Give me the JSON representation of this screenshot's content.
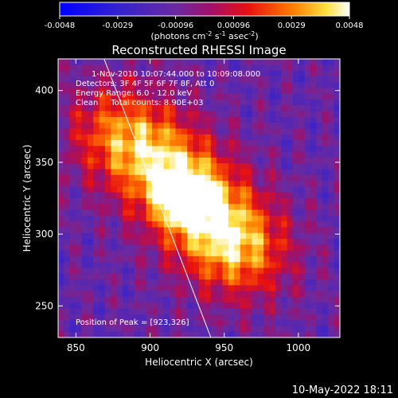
{
  "chart_data": {
    "type": "heatmap",
    "title": "Reconstructed RHESSI Image",
    "xlabel": "Heliocentric X (arcsec)",
    "ylabel": "Heliocentric Y (arcsec)",
    "xlim": [
      838,
      1028
    ],
    "ylim": [
      228,
      422
    ],
    "xticks": [
      850,
      900,
      950,
      1000
    ],
    "yticks": [
      250,
      300,
      350,
      400
    ],
    "colorbar": {
      "min": -0.0048,
      "max": 0.0048,
      "ticks": [
        "-0.0048",
        "-0.0029",
        "-0.00096",
        "0.00096",
        "0.0029",
        "0.0048"
      ],
      "units_label": "(photons cm",
      "units_sup1": "-2",
      "units_mid": " s",
      "units_sup2": "-1",
      "units_end": " asec",
      "units_sup3": "-2",
      "units_close": ")",
      "colormap": "blue-purple-red-orange-yellow-white"
    },
    "annotations": [
      "1-Nov-2010 10:07:44.000 to 10:09:08.000",
      "Detectors: 3F 4F 5F 6F 7F 8F, Att 0",
      "Energy Range: 6.0 - 12.0 keV",
      "Clean     Total counts: 8.90E+03"
    ],
    "peak_label": "Position of Peak = [923,326]",
    "peak": [
      923,
      326
    ],
    "limb_line": [
      [
        869,
        422
      ],
      [
        941,
        228
      ]
    ],
    "source_ridge": [
      [
        877,
        372
      ],
      [
        905,
        352
      ],
      [
        925,
        328
      ],
      [
        945,
        306
      ],
      [
        963,
        286
      ]
    ],
    "timestamp": "10-May-2022 18:11"
  }
}
